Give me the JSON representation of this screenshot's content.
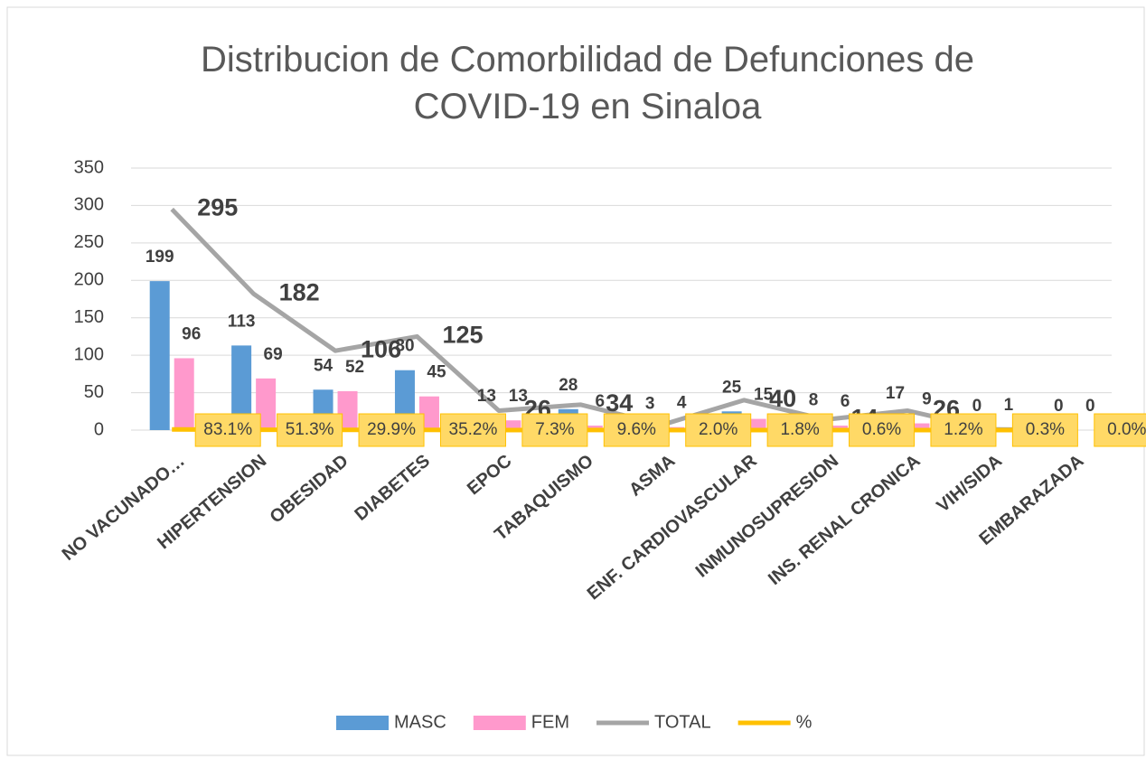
{
  "chart_data": {
    "type": "bar",
    "title": "Distribucion de Comorbilidad de Defunciones de COVID-19 en Sinaloa",
    "categories": [
      "NO VACUNADO…",
      "HIPERTENSION",
      "OBESIDAD",
      "DIABETES",
      "EPOC",
      "TABAQUISMO",
      "ASMA",
      "ENF. CARDIOVASCULAR",
      "INMUNOSUPRESION",
      "INS. RENAL CRONICA",
      "VIH/SIDA",
      "EMBARAZADA"
    ],
    "series": [
      {
        "name": "MASC",
        "color": "#5b9bd5",
        "values": [
          199,
          113,
          54,
          80,
          13,
          28,
          3,
          25,
          8,
          17,
          0,
          0
        ]
      },
      {
        "name": "FEM",
        "color": "#ff99cc",
        "values": [
          96,
          69,
          52,
          45,
          13,
          6,
          4,
          15,
          6,
          9,
          1,
          0
        ]
      },
      {
        "name": "TOTAL",
        "type": "line",
        "color": "#a5a5a5",
        "values": [
          295,
          182,
          106,
          125,
          26,
          34,
          7,
          40,
          14,
          26,
          1,
          0
        ]
      },
      {
        "name": "%",
        "type": "line",
        "color": "#ffc000",
        "values": [
          0.831,
          0.513,
          0.299,
          0.352,
          0.073,
          0.096,
          0.02,
          0.018,
          0.006,
          0.012,
          0.003,
          0.0
        ],
        "value_labels": [
          "83.1%",
          "51.3%",
          "29.9%",
          "35.2%",
          "7.3%",
          "9.6%",
          "2.0%",
          "1.8%",
          "0.6%",
          "1.2%",
          "0.3%",
          "0.0%"
        ]
      }
    ],
    "ylim": [
      0,
      350
    ],
    "yticks": [
      0,
      50,
      100,
      150,
      200,
      250,
      300,
      350
    ],
    "grid": true,
    "legend": "bottom"
  }
}
